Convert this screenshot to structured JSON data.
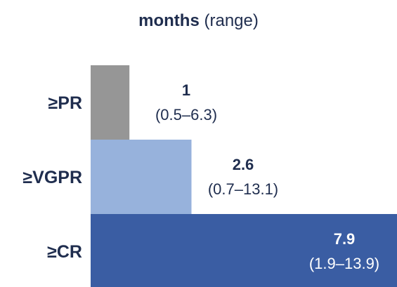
{
  "title": {
    "bold": "months",
    "rest": " (range)"
  },
  "chart_data": {
    "type": "bar",
    "orientation": "horizontal",
    "title": "months (range)",
    "categories": [
      "≥PR",
      "≥VGPR",
      "≥CR"
    ],
    "values": [
      1,
      2.6,
      7.9
    ],
    "value_labels": [
      "1",
      "2.6",
      "7.9"
    ],
    "range_labels": [
      "(0.5–6.3)",
      "(0.7–13.1)",
      "(1.9–13.9)"
    ],
    "colors": [
      "#969696",
      "#97b2dc",
      "#3a5da3"
    ],
    "label_colors": [
      "#1f2d4e",
      "#1f2d4e",
      "#ffffff"
    ],
    "xlim": [
      0,
      7.9
    ],
    "grid": false,
    "legend": "none"
  }
}
